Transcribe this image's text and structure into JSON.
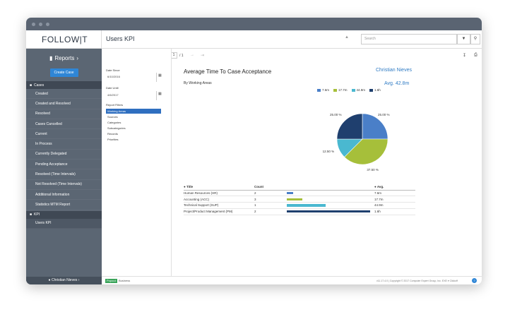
{
  "app": {
    "logo": "FOLLOW|T",
    "page_title": "Users KPI"
  },
  "search": {
    "placeholder": "Search",
    "filter_icon": "filter-icon",
    "go_icon": "search-icon"
  },
  "sidebar": {
    "reports_label": "Reports",
    "create_case": "Create Case",
    "cases_header": "Cases",
    "items": [
      "Created",
      "Created and Resolved",
      "Resolved",
      "Cases Cancelled",
      "Current",
      "In Process",
      "Currently Delegated",
      "Pending Acceptance",
      "Resolved (Time Intervals)",
      "Not Resolved (Time Intervals)",
      "Additional Information",
      "Statistics MTM Report"
    ],
    "kpi_header": "KPI",
    "kpi_items": [
      "Users KPI"
    ],
    "user": "Christian Nieves"
  },
  "toolbar": {
    "page_current": "1",
    "page_total": "/ 1"
  },
  "filters": {
    "date_since_label": "Date Since",
    "date_since": "6/10/2016",
    "date_until_label": "Date Until",
    "date_until": "4/6/2017",
    "report_filters_label": "Report Filters",
    "items": [
      "Working Areas",
      "Sources",
      "Categories",
      "Subcategories",
      "Records",
      "Priorities"
    ],
    "selected": "Working Areas"
  },
  "report": {
    "title": "Average Time To Case Acceptance",
    "subtitle": "By Working Areas",
    "user": "Christian Nieves",
    "avg": "Avg. 42.8m"
  },
  "chart_data": {
    "type": "pie",
    "legend": [
      "7.6m",
      "17.7m",
      "44.9m",
      "1.6h"
    ],
    "colors": [
      "#4a7fc8",
      "#a6bf3a",
      "#4ab8d0",
      "#1f3f6e"
    ],
    "values": [
      25.0,
      37.5,
      12.5,
      25.0
    ],
    "slice_labels": [
      "25.00 %",
      "37.50 %",
      "12.50 %",
      "25.00 %"
    ]
  },
  "table": {
    "headers": [
      "Title",
      "Count",
      "",
      "Avg."
    ],
    "rows": [
      {
        "title": "Human Resources (HR)",
        "count": "2",
        "avg": "7.6m",
        "fraction": 0.079,
        "color": "#4a7fc8"
      },
      {
        "title": "Accounting (ACC)",
        "count": "3",
        "avg": "17.7m",
        "fraction": 0.184,
        "color": "#a6bf3a"
      },
      {
        "title": "Technical Support (SUP)",
        "count": "1",
        "avg": "44.9m",
        "fraction": 0.468,
        "color": "#4ab8d0"
      },
      {
        "title": "Project/Product Management (PM)",
        "count": "2",
        "avg": "1.6h",
        "fraction": 1.0,
        "color": "#1f3f6e"
      }
    ]
  },
  "footer": {
    "badge": "Popout",
    "edition": "Business",
    "copyright": "v11.17.4.0 | Copyright © 2017 Computer Expert Group, Inc. EXE ▾ Clickoff"
  }
}
